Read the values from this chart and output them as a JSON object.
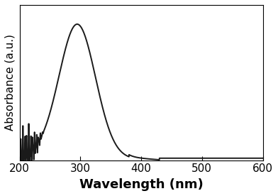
{
  "title": "",
  "xlabel": "Wavelength (nm)",
  "ylabel": "Absorbance (a.u.)",
  "xlim": [
    200,
    600
  ],
  "ylim": [
    0,
    1.05
  ],
  "xticks": [
    200,
    300,
    400,
    500,
    600
  ],
  "line_color": "#1a1a1a",
  "line_width": 1.4,
  "background_color": "#ffffff",
  "xlabel_fontsize": 13,
  "ylabel_fontsize": 11
}
